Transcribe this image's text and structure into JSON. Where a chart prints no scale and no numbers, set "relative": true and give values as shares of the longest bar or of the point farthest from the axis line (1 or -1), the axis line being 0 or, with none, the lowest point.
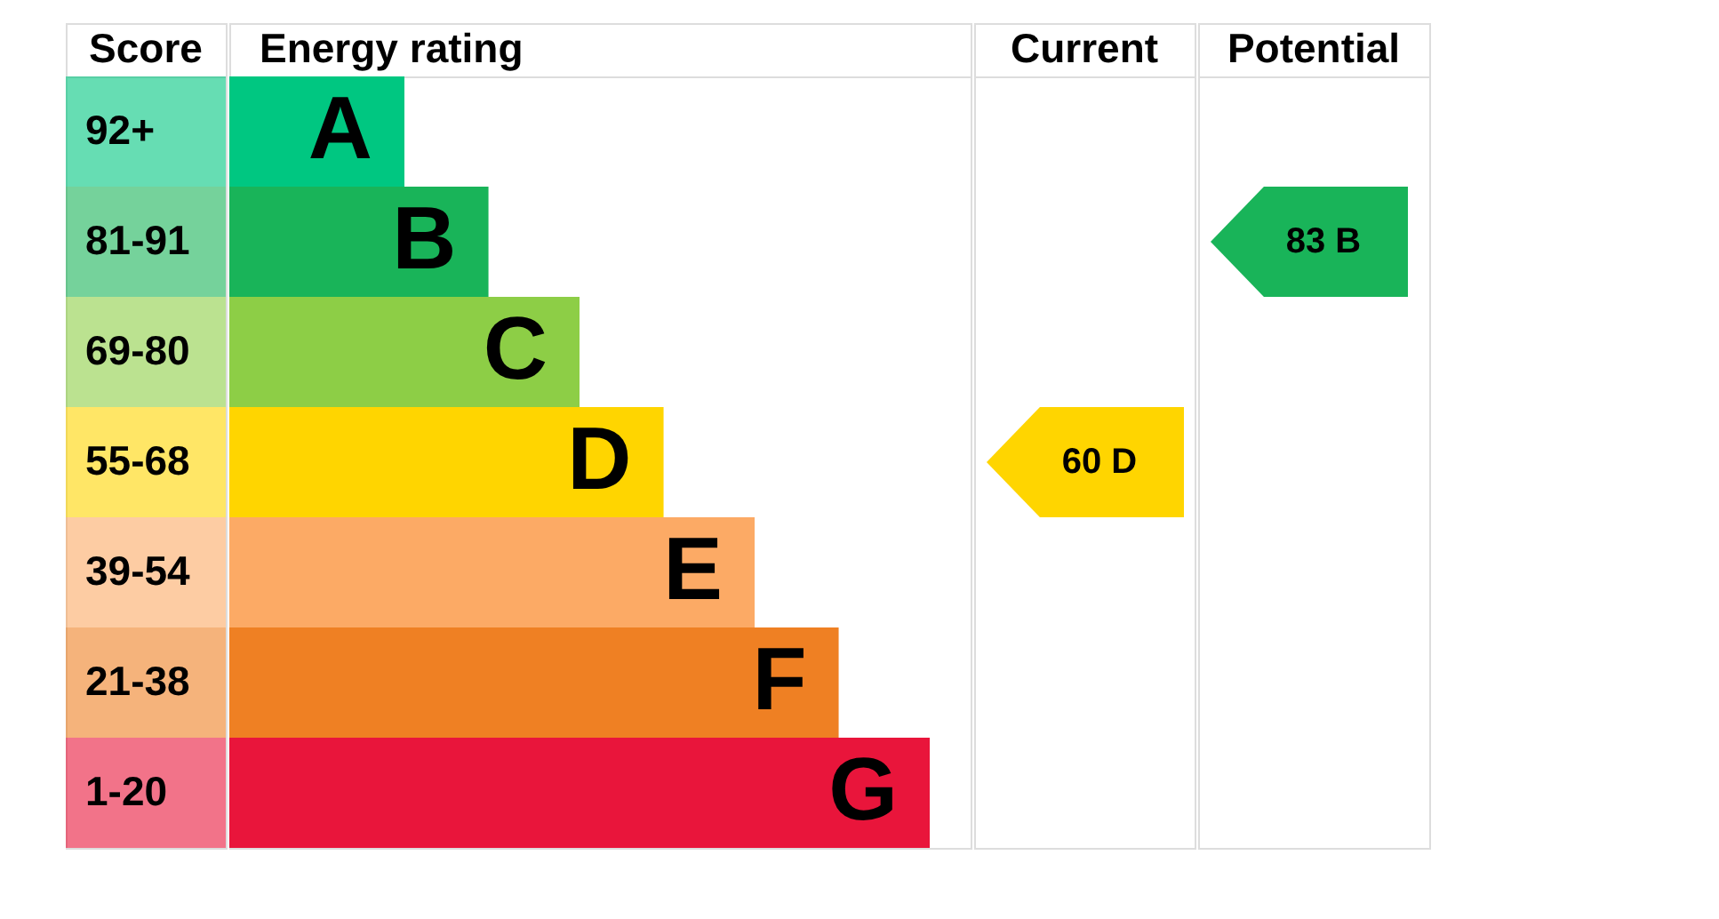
{
  "chart_data": {
    "type": "bar",
    "orientation": "horizontal",
    "relative": true,
    "ylabel": "Score",
    "xlabel": "Energy rating",
    "categories": [
      "92+",
      "81-91",
      "69-80",
      "55-68",
      "39-54",
      "21-38",
      "1-20"
    ],
    "values": [
      0.25,
      0.37,
      0.5,
      0.62,
      0.75,
      0.87,
      1
    ],
    "colors": [
      "#00c781",
      "#19b459",
      "#8dce46",
      "#ffd500",
      "#fcaa65",
      "#ef8023",
      "#e9153b"
    ],
    "annotations": [
      {
        "text": "A",
        "x": 0.25,
        "y": "92+"
      },
      {
        "text": "B",
        "x": 0.37,
        "y": "81-91"
      },
      {
        "text": "C",
        "x": 0.5,
        "y": "69-80"
      },
      {
        "text": "D",
        "x": 0.62,
        "y": "55-68"
      },
      {
        "text": "E",
        "x": 0.75,
        "y": "39-54"
      },
      {
        "text": "F",
        "x": 0.87,
        "y": "21-38"
      },
      {
        "text": "G",
        "x": 1,
        "y": "1-20"
      },
      "Current",
      "Potential",
      "60 D",
      "83 B"
    ]
  }
}
